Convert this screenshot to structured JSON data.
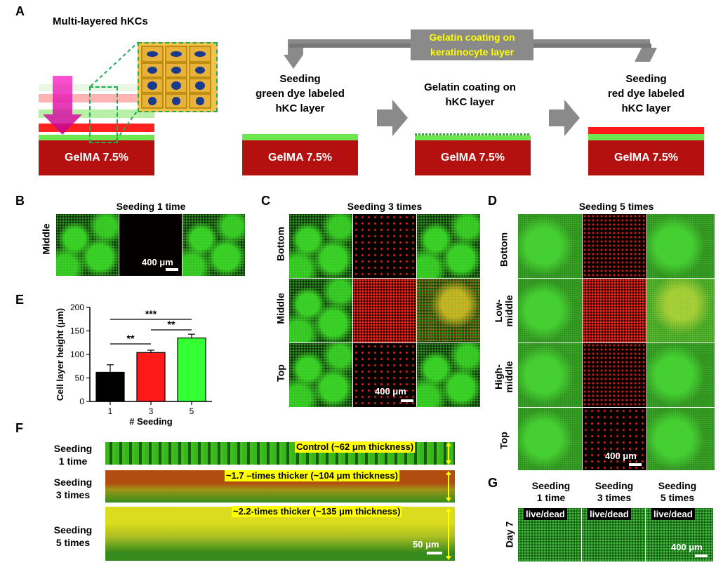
{
  "panel_letters": [
    "A",
    "B",
    "C",
    "D",
    "E",
    "F",
    "G"
  ],
  "colors": {
    "gelma": "#b51010",
    "green": "#6ee650",
    "red": "#ff1a1a",
    "arrow": "#888888",
    "yellow": "#ffff00"
  },
  "panel_a": {
    "title": "Multi-layered hKCs",
    "gel_label": "GelMA 7.5%",
    "arrow_label_line1": "Gelatin coating on",
    "arrow_label_line2": "keratinocyte layer",
    "step1": [
      "Seeding",
      "green dye labeled",
      "hKC layer"
    ],
    "step2": [
      "Gelatin coating on",
      "hKC layer"
    ],
    "step3": [
      "Seeding",
      "red dye labeled",
      "hKC layer"
    ]
  },
  "panel_b": {
    "title": "Seeding 1 time",
    "row_label": "Middle",
    "scale": "400 μm"
  },
  "panel_c": {
    "title": "Seeding 3 times",
    "rows": [
      "Bottom",
      "Middle",
      "Top"
    ],
    "scale": "400 μm"
  },
  "panel_d": {
    "title": "Seeding 5 times",
    "rows": [
      "Bottom",
      "Low-\nmiddle",
      "High-\nmiddle",
      "Top"
    ],
    "scale": "400 μm"
  },
  "panel_e": {
    "ylabel": "Cell layer height (μm)",
    "xlabel": "# Seeding",
    "sig": [
      "***",
      "**",
      "**"
    ]
  },
  "chart_data": {
    "type": "bar",
    "categories": [
      "1",
      "3",
      "5"
    ],
    "values": [
      62,
      104,
      135
    ],
    "errors": [
      16,
      5,
      8
    ],
    "bar_colors": [
      "#000000",
      "#ff1a1a",
      "#33ff33"
    ],
    "ylim": [
      0,
      200
    ],
    "yticks": [
      0,
      50,
      100,
      150,
      200
    ],
    "xlabel": "# Seeding",
    "ylabel": "Cell layer height (μm)"
  },
  "panel_f": {
    "rows": [
      {
        "label": [
          "Seeding",
          "1 time"
        ],
        "caption": "Control (~62 μm thickness)"
      },
      {
        "label": [
          "Seeding",
          "3 times"
        ],
        "caption": "~1.7 –times thicker (~104 μm thickness)"
      },
      {
        "label": [
          "Seeding",
          "5 times"
        ],
        "caption": "~2.2-times thicker (~135 μm thickness)"
      }
    ],
    "scale": "50 μm"
  },
  "panel_g": {
    "cols": [
      [
        "Seeding",
        "1 time"
      ],
      [
        "Seeding",
        "3 times"
      ],
      [
        "Seeding",
        "5 times"
      ]
    ],
    "tag": "live/dead",
    "row_label": "Day 7",
    "scale": "400 μm"
  }
}
